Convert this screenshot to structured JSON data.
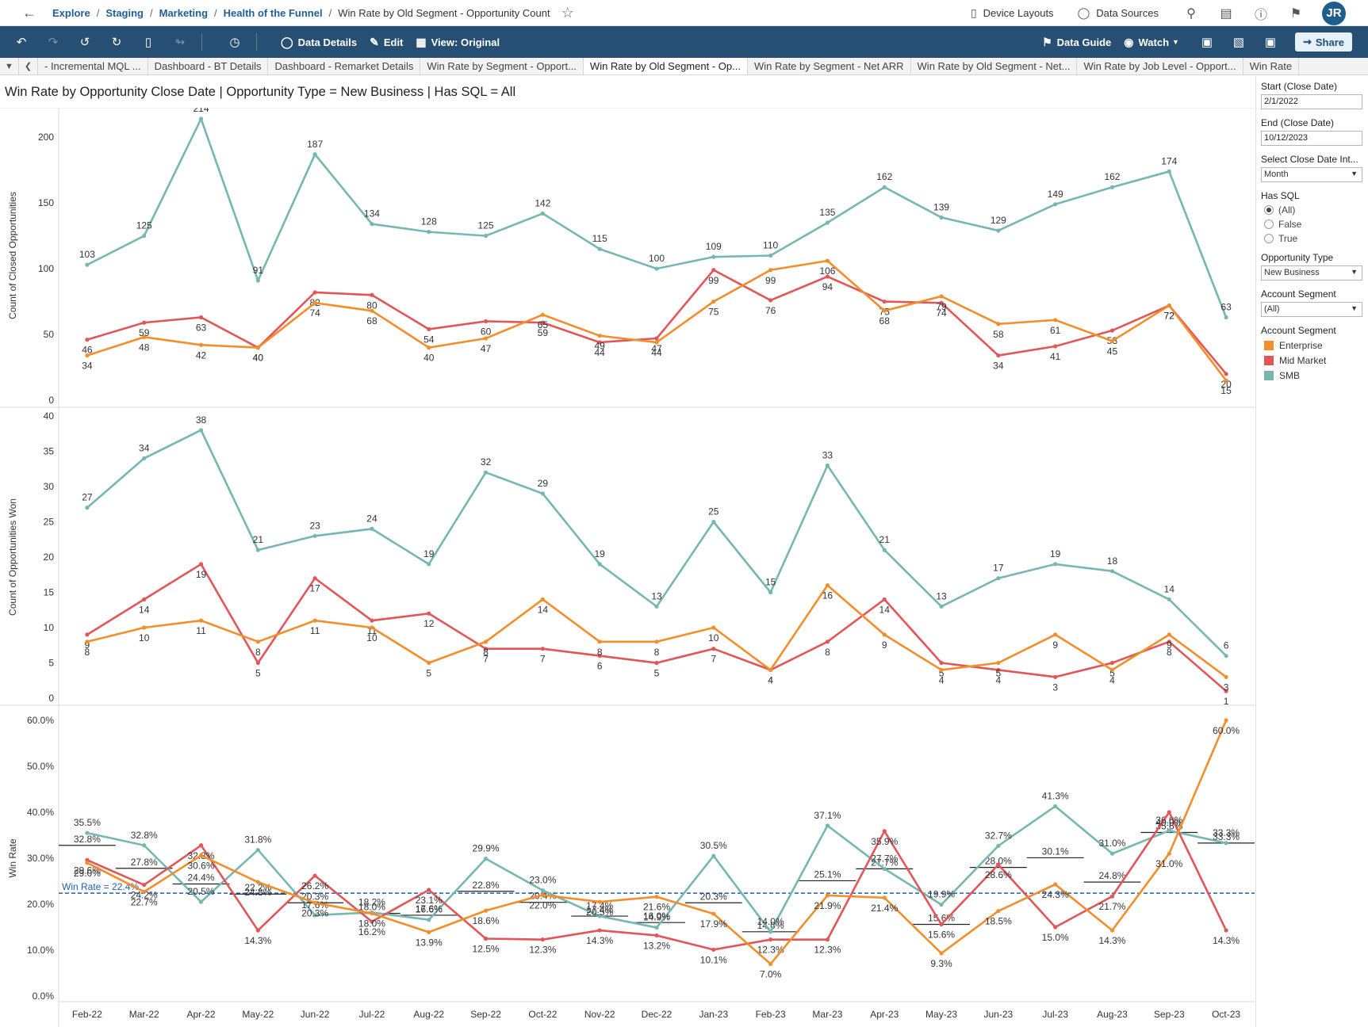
{
  "breadcrumb": [
    "Explore",
    "Staging",
    "Marketing",
    "Health of the Funnel"
  ],
  "breadcrumb_current": "Win Rate by Old Segment - Opportunity Count",
  "top_links": {
    "device_layouts": "Device Layouts",
    "data_sources": "Data Sources"
  },
  "user_initials": "JR",
  "toolbar": {
    "data_details": "Data Details",
    "edit": "Edit",
    "view": "View: Original",
    "data_guide": "Data Guide",
    "watch": "Watch",
    "share": "Share"
  },
  "tabs": [
    "- Incremental MQL ...",
    "Dashboard - BT Details",
    "Dashboard - Remarket Details",
    "Win Rate by Segment - Opport...",
    "Win Rate by Old Segment - Op...",
    "Win Rate by Segment - Net ARR",
    "Win Rate by Old Segment - Net...",
    "Win Rate by Job Level - Opport...",
    "Win Rate"
  ],
  "active_tab": 4,
  "dashboard_title": "Win Rate by Opportunity Close Date | Opportunity Type = New Business | Has SQL = All",
  "filters": {
    "start_label": "Start (Close Date)",
    "start_value": "2/1/2022",
    "end_label": "End (Close Date)",
    "end_value": "10/12/2023",
    "interval_label": "Select Close Date Int...",
    "interval_value": "Month",
    "has_sql_label": "Has  SQL",
    "has_sql_options": [
      "(All)",
      "False",
      "True"
    ],
    "has_sql_selected": 0,
    "opp_type_label": "Opportunity Type",
    "opp_type_value": "New Business",
    "segment_label": "Account Segment",
    "segment_value": "(All)",
    "legend_label": "Account Segment"
  },
  "chart_data": {
    "type": "line",
    "categories": [
      "Feb-22",
      "Mar-22",
      "Apr-22",
      "May-22",
      "Jun-22",
      "Jul-22",
      "Aug-22",
      "Sep-22",
      "Oct-22",
      "Nov-22",
      "Dec-22",
      "Jan-23",
      "Feb-23",
      "Mar-23",
      "Apr-23",
      "May-23",
      "Jun-23",
      "Jul-23",
      "Aug-23",
      "Sep-23",
      "Oct-23"
    ],
    "colors": {
      "Enterprise": "#f28e2b",
      "Mid Market": "#e15759",
      "SMB": "#76b7b2"
    },
    "panels": [
      {
        "ylabel": "Count of Closed Opportunities",
        "ylim": [
          0,
          220
        ],
        "ticks": [
          0,
          50,
          100,
          150,
          200
        ],
        "series": [
          {
            "name": "SMB",
            "values": [
              103,
              125,
              214,
              91,
              187,
              134,
              128,
              125,
              142,
              115,
              100,
              109,
              110,
              135,
              162,
              139,
              129,
              149,
              162,
              174,
              63
            ]
          },
          {
            "name": "Mid Market",
            "values": [
              46,
              59,
              63,
              40,
              82,
              80,
              54,
              60,
              59,
              44,
              47,
              99,
              76,
              94,
              75,
              74,
              34,
              41,
              53,
              72,
              20
            ]
          },
          {
            "name": "Enterprise",
            "values": [
              34,
              48,
              42,
              40,
              74,
              68,
              40,
              47,
              65,
              49,
              44,
              75,
              99,
              106,
              68,
              79,
              58,
              61,
              45,
              72,
              15
            ]
          }
        ]
      },
      {
        "ylabel": "Count of Opportunities Won",
        "ylim": [
          0,
          40
        ],
        "ticks": [
          0,
          5,
          10,
          15,
          20,
          25,
          30,
          35,
          40
        ],
        "series": [
          {
            "name": "SMB",
            "values": [
              27,
              34,
              38,
              21,
              23,
              24,
              19,
              32,
              29,
              19,
              13,
              25,
              15,
              33,
              21,
              13,
              17,
              19,
              18,
              14,
              6
            ]
          },
          {
            "name": "Mid Market",
            "values": [
              9,
              14,
              19,
              5,
              17,
              11,
              12,
              7,
              7,
              6,
              5,
              7,
              4,
              8,
              14,
              5,
              4,
              3,
              5,
              8,
              1
            ]
          },
          {
            "name": "Enterprise",
            "values": [
              8,
              10,
              11,
              8,
              11,
              10,
              5,
              8,
              14,
              8,
              8,
              10,
              4,
              16,
              9,
              4,
              5,
              9,
              4,
              9,
              3
            ]
          }
        ]
      },
      {
        "ylabel": "Win Rate",
        "ylim": [
          0,
          60
        ],
        "ticks": [
          0,
          10,
          20,
          30,
          40,
          50,
          60
        ],
        "series": [
          {
            "name": "SMB",
            "values": [
              35.5,
              32.8,
              20.5,
              31.8,
              17.6,
              18.2,
              16.6,
              29.9,
              23.0,
              17.4,
              14.9,
              30.5,
              14.0,
              37.1,
              27.7,
              19.9,
              32.7,
              41.3,
              31.0,
              36.0,
              33.3
            ]
          },
          {
            "name": "Mid Market",
            "values": [
              29.6,
              24.2,
              32.8,
              14.3,
              26.2,
              16.2,
              23.1,
              12.5,
              12.3,
              14.3,
              13.2,
              10.1,
              12.3,
              12.3,
              35.9,
              15.6,
              28.6,
              15.0,
              21.7,
              40.0,
              14.3
            ]
          },
          {
            "name": "Enterprise",
            "values": [
              29.0,
              22.7,
              30.6,
              24.8,
              20.3,
              18.0,
              13.9,
              18.6,
              22.0,
              20.5,
              21.6,
              17.9,
              7.0,
              21.9,
              21.4,
              9.3,
              18.5,
              24.3,
              14.3,
              31.0,
              60.0
            ]
          }
        ],
        "reference_line": {
          "label": "Win Rate = 22.4%",
          "value": 22.4
        },
        "period_average": [
          32.8,
          27.8,
          24.4,
          22.2,
          20.3,
          18.0,
          17.6,
          22.8,
          20.4,
          17.4,
          16.0,
          20.3,
          14.0,
          25.1,
          27.7,
          15.6,
          28.0,
          30.1,
          24.8,
          35.6,
          33.3
        ]
      }
    ]
  }
}
